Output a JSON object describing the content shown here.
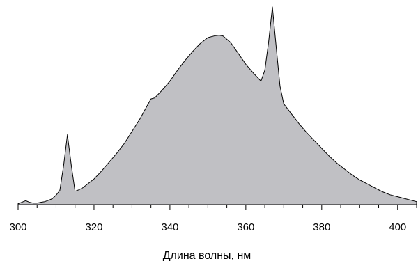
{
  "chart_data": {
    "type": "area",
    "title": "",
    "xlabel": "Длина волны, нм",
    "ylabel": "",
    "xlim": [
      300,
      405
    ],
    "ylim": [
      0,
      1
    ],
    "grid": false,
    "legend": "none",
    "fill_color": "#c0c0c4",
    "line_color": "#000000",
    "x_ticks": [
      300,
      320,
      340,
      360,
      380,
      400
    ],
    "x_ticks_minor_step": 5,
    "x": [
      300,
      301,
      302,
      303,
      304,
      305,
      306,
      307,
      308,
      309,
      310,
      311,
      312,
      313,
      314,
      315,
      316,
      317,
      318,
      320,
      322,
      324,
      326,
      328,
      330,
      332,
      334,
      335,
      336,
      338,
      340,
      342,
      344,
      346,
      348,
      350,
      352,
      353,
      354,
      356,
      358,
      360,
      362,
      364,
      365,
      366,
      367,
      368,
      369,
      370,
      372,
      374,
      376,
      378,
      380,
      382,
      384,
      386,
      388,
      390,
      392,
      394,
      396,
      398,
      400,
      402,
      404,
      405
    ],
    "y": [
      0.005,
      0.012,
      0.02,
      0.012,
      0.008,
      0.008,
      0.012,
      0.015,
      0.022,
      0.03,
      0.048,
      0.072,
      0.2,
      0.354,
      0.2,
      0.068,
      0.075,
      0.085,
      0.1,
      0.13,
      0.17,
      0.215,
      0.26,
      0.31,
      0.37,
      0.43,
      0.5,
      0.535,
      0.54,
      0.58,
      0.625,
      0.68,
      0.73,
      0.775,
      0.815,
      0.845,
      0.855,
      0.857,
      0.853,
      0.82,
      0.765,
      0.71,
      0.665,
      0.625,
      0.68,
      0.82,
      1.0,
      0.8,
      0.6,
      0.51,
      0.46,
      0.41,
      0.365,
      0.325,
      0.285,
      0.245,
      0.21,
      0.18,
      0.15,
      0.125,
      0.105,
      0.085,
      0.065,
      0.05,
      0.04,
      0.03,
      0.02,
      0.015
    ]
  }
}
